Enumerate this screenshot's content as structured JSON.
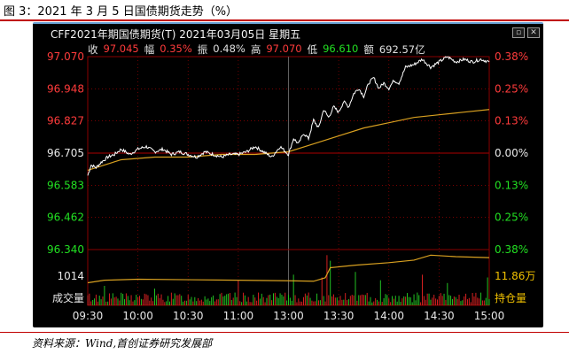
{
  "figure_title": "图 3：2021 年 3 月 5 日国债期货走势（%）",
  "source": "资料来源：Wind,首创证券研究发展部",
  "terminal": {
    "title": "CFF2021年期国债期货(T)  2021年03月05日  星期五",
    "window_buttons": [
      "▫",
      "✕"
    ],
    "quote": {
      "close_label": "收",
      "close_value": "97.045",
      "change_label": "幅",
      "change_value": "0.35%",
      "amplitude_label": "振",
      "amplitude_value": "0.48%",
      "high_label": "高",
      "high_value": "97.070",
      "low_label": "低",
      "low_value": "96.610",
      "turnover_label": "额",
      "turnover_value": "692.57亿"
    }
  },
  "colors": {
    "up": "#ff3b3b",
    "down": "#22e022",
    "price_line": "#ffffff",
    "avg_line": "#d8a020",
    "volume_up": "#d42020",
    "volume_down": "#22c022",
    "oi_line": "#d8a020",
    "grid": "#8a0000"
  },
  "chart_data": {
    "type": "line",
    "x": [
      "09:30",
      "10:00",
      "10:30",
      "11:00",
      "13:00",
      "13:30",
      "14:00",
      "14:30",
      "15:00"
    ],
    "price_axis": {
      "ticks": [
        {
          "price": "97.070",
          "pct": "0.38%",
          "color": "up"
        },
        {
          "price": "96.948",
          "pct": "0.25%",
          "color": "up"
        },
        {
          "price": "96.827",
          "pct": "0.13%",
          "color": "up"
        },
        {
          "price": "96.705",
          "pct": "0.00%",
          "color": "flat"
        },
        {
          "price": "96.583",
          "pct": "0.13%",
          "color": "down"
        },
        {
          "price": "96.462",
          "pct": "0.25%",
          "color": "down"
        },
        {
          "price": "96.340",
          "pct": "0.38%",
          "color": "down"
        }
      ],
      "ylim": [
        96.34,
        97.07
      ],
      "reference": 96.705
    },
    "series": [
      {
        "name": "",
        "key": "price",
        "points": [
          [
            0,
            96.62
          ],
          [
            2,
            96.66
          ],
          [
            5,
            96.65
          ],
          [
            8,
            96.67
          ],
          [
            12,
            96.69
          ],
          [
            16,
            96.7
          ],
          [
            20,
            96.72
          ],
          [
            25,
            96.7
          ],
          [
            30,
            96.72
          ],
          [
            35,
            96.73
          ],
          [
            40,
            96.71
          ],
          [
            45,
            96.72
          ],
          [
            50,
            96.7
          ],
          [
            55,
            96.71
          ],
          [
            60,
            96.7
          ],
          [
            65,
            96.69
          ],
          [
            70,
            96.71
          ],
          [
            75,
            96.7
          ],
          [
            80,
            96.69
          ],
          [
            85,
            96.7
          ],
          [
            90,
            96.7
          ],
          [
            95,
            96.71
          ],
          [
            100,
            96.73
          ],
          [
            105,
            96.71
          ],
          [
            110,
            96.69
          ],
          [
            115,
            96.73
          ],
          [
            120,
            96.7
          ],
          [
            123,
            96.76
          ],
          [
            126,
            96.74
          ],
          [
            129,
            96.78
          ],
          [
            132,
            96.76
          ],
          [
            135,
            96.83
          ],
          [
            138,
            96.8
          ],
          [
            141,
            96.87
          ],
          [
            144,
            96.84
          ],
          [
            147,
            96.88
          ],
          [
            150,
            96.86
          ],
          [
            153,
            96.9
          ],
          [
            156,
            96.88
          ],
          [
            159,
            96.93
          ],
          [
            162,
            96.95
          ],
          [
            165,
            96.92
          ],
          [
            168,
            96.97
          ],
          [
            171,
            96.99
          ],
          [
            174,
            96.95
          ],
          [
            177,
            96.97
          ],
          [
            180,
            96.95
          ],
          [
            183,
            96.98
          ],
          [
            186,
            96.97
          ],
          [
            190,
            97.03
          ],
          [
            195,
            97.04
          ],
          [
            200,
            97.06
          ],
          [
            205,
            97.03
          ],
          [
            210,
            97.05
          ],
          [
            215,
            97.07
          ],
          [
            220,
            97.05
          ],
          [
            225,
            97.06
          ],
          [
            230,
            97.05
          ],
          [
            235,
            97.06
          ],
          [
            240,
            97.05
          ]
        ]
      },
      {
        "name": "",
        "key": "average",
        "points": [
          [
            0,
            96.64
          ],
          [
            10,
            96.66
          ],
          [
            20,
            96.68
          ],
          [
            40,
            96.69
          ],
          [
            60,
            96.69
          ],
          [
            80,
            96.7
          ],
          [
            100,
            96.7
          ],
          [
            120,
            96.71
          ],
          [
            135,
            96.74
          ],
          [
            150,
            96.77
          ],
          [
            165,
            96.8
          ],
          [
            180,
            96.82
          ],
          [
            195,
            96.84
          ],
          [
            210,
            96.85
          ],
          [
            225,
            96.86
          ],
          [
            240,
            96.87
          ]
        ]
      }
    ],
    "volume_panel": {
      "left_value_label": "1014",
      "left_name_label": "成交量",
      "right_value_label": "11.86万",
      "right_name_label": "持仓量",
      "open_interest": [
        [
          0,
          0.45
        ],
        [
          10,
          0.5
        ],
        [
          30,
          0.52
        ],
        [
          60,
          0.51
        ],
        [
          90,
          0.5
        ],
        [
          120,
          0.49
        ],
        [
          135,
          0.48
        ],
        [
          142,
          0.55
        ],
        [
          145,
          0.75
        ],
        [
          160,
          0.8
        ],
        [
          180,
          0.85
        ],
        [
          195,
          0.9
        ],
        [
          205,
          1.0
        ],
        [
          220,
          0.97
        ],
        [
          240,
          0.95
        ]
      ],
      "volume_spikes": [
        [
          10,
          0.35
        ],
        [
          40,
          0.3
        ],
        [
          90,
          0.45
        ],
        [
          123,
          0.55
        ],
        [
          140,
          0.5
        ],
        [
          143,
          0.9
        ],
        [
          145,
          0.8
        ],
        [
          160,
          0.6
        ],
        [
          175,
          0.45
        ],
        [
          200,
          0.55
        ],
        [
          215,
          0.4
        ],
        [
          239,
          0.5
        ]
      ]
    }
  }
}
